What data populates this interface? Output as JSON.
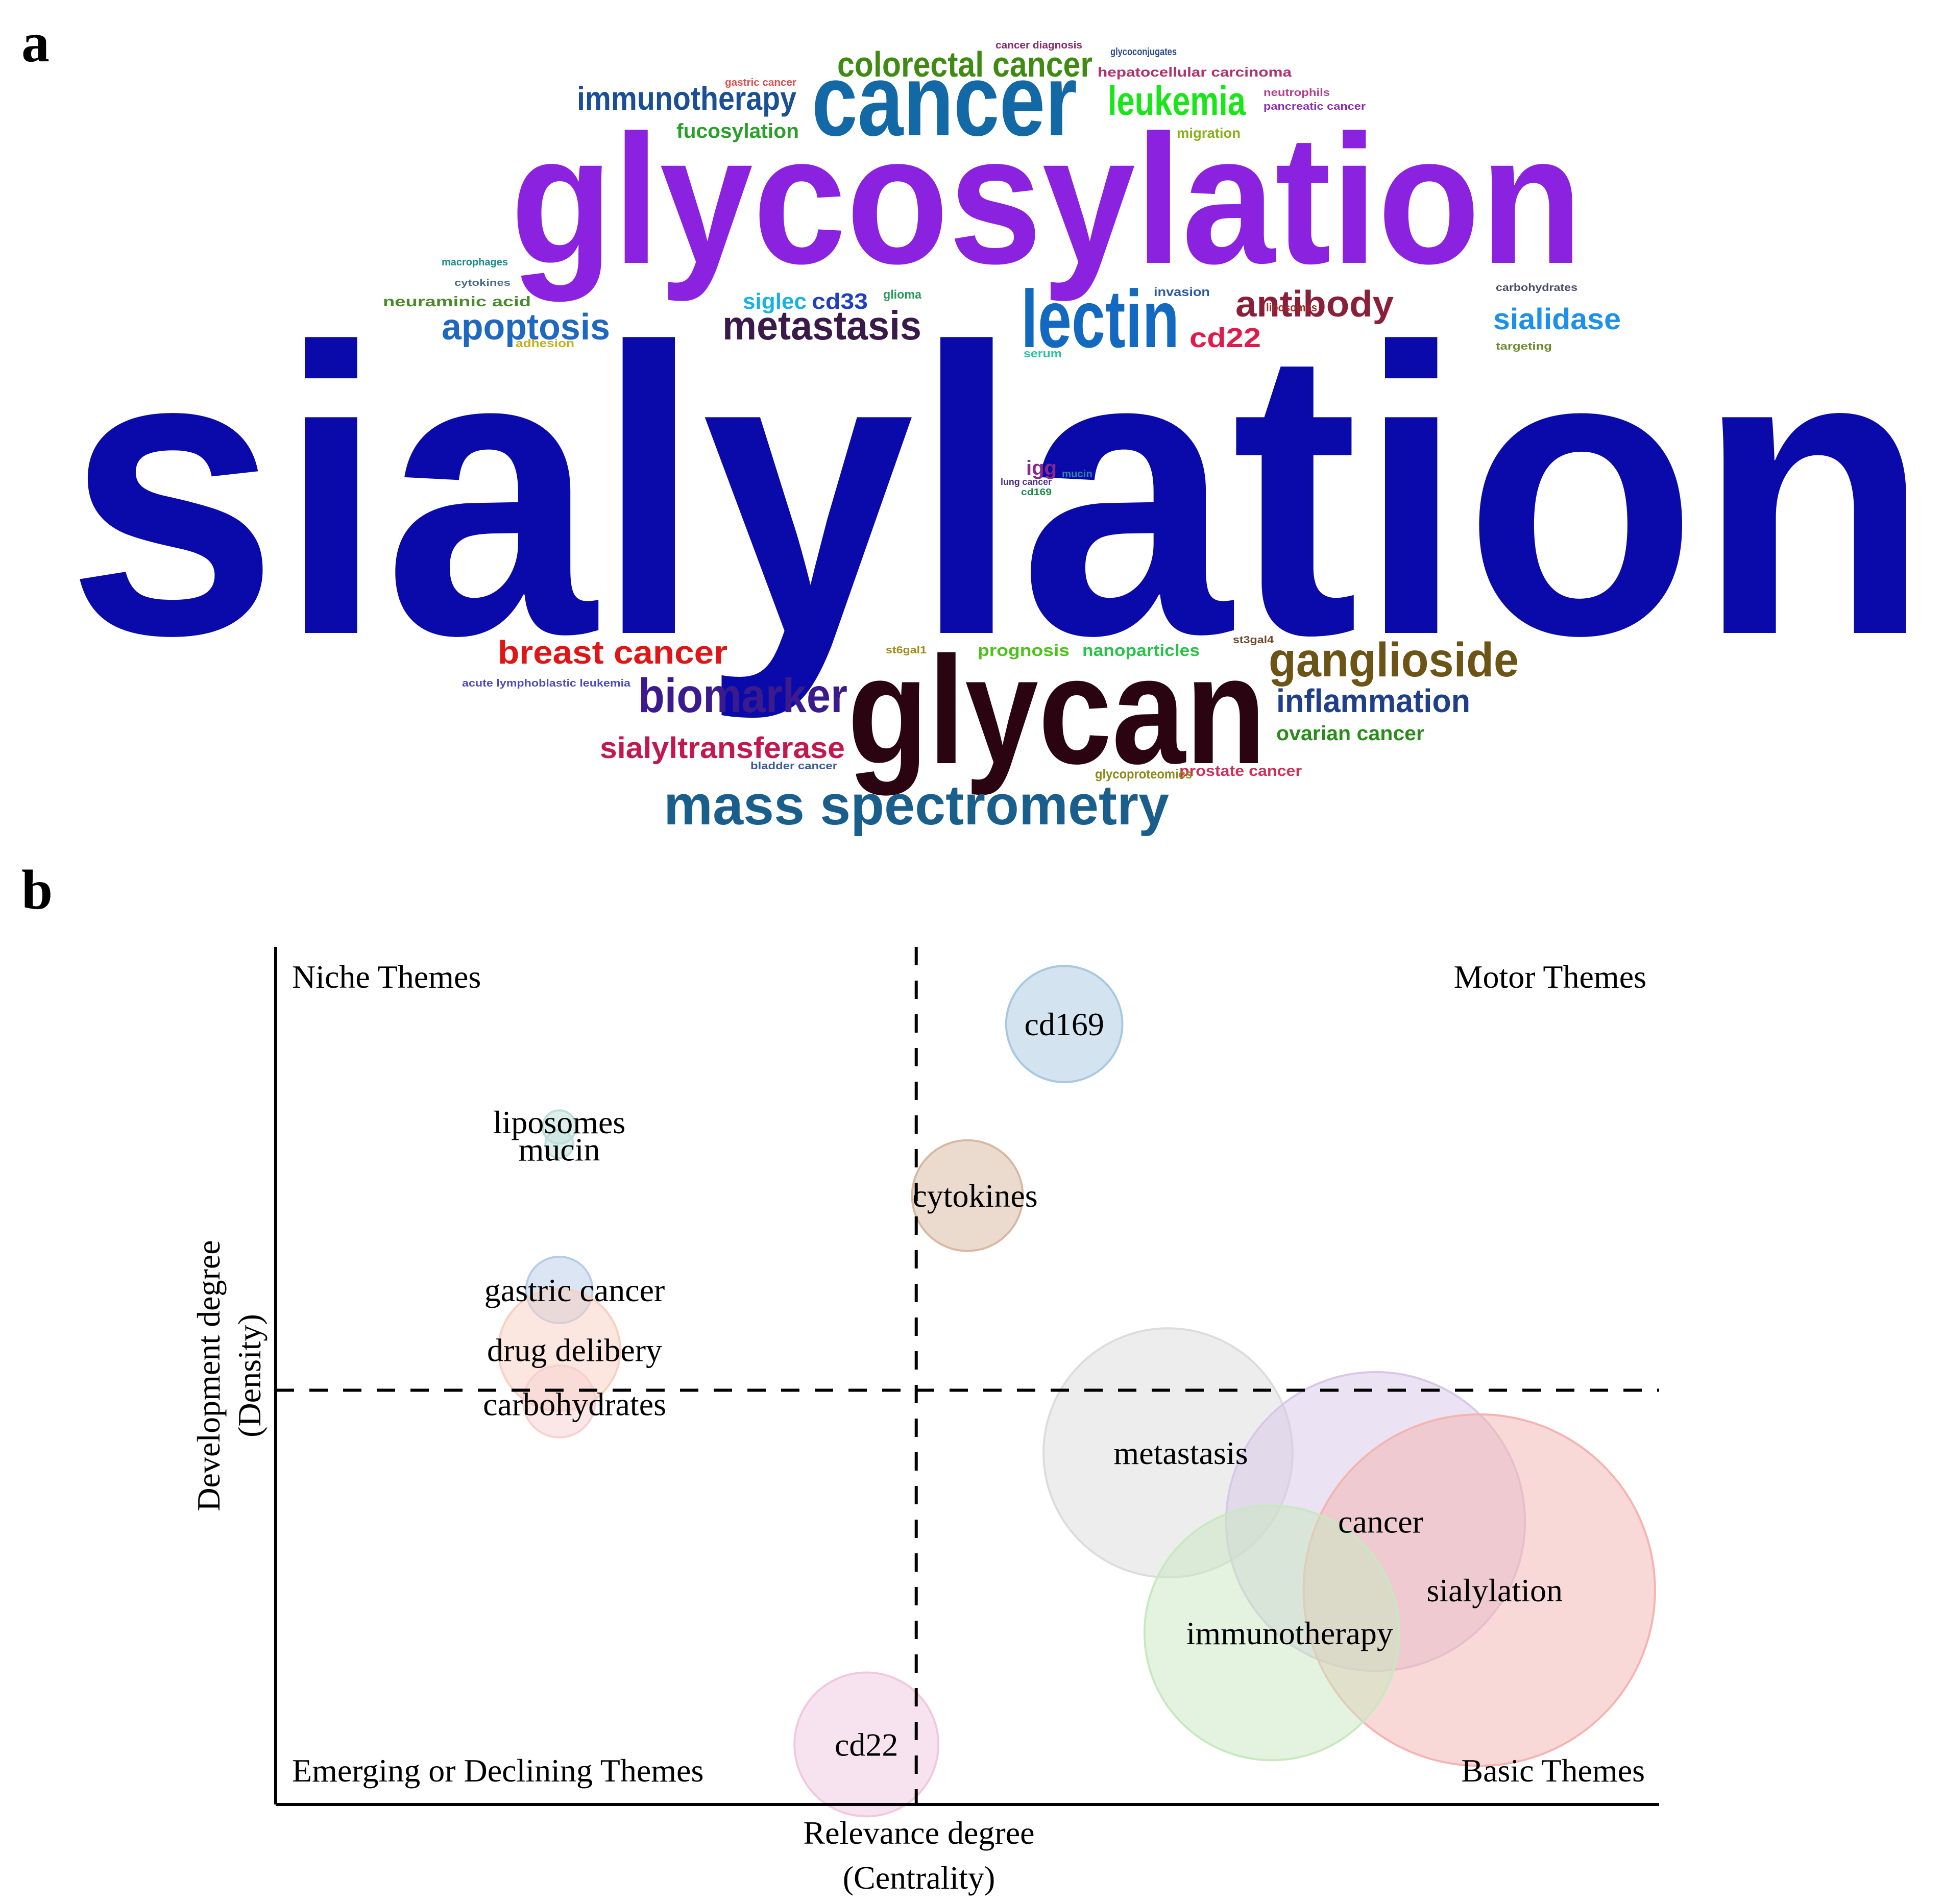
{
  "panel_a": {
    "label": "a",
    "words": [
      {
        "text": "sialylation",
        "color": "#0a0aaa"
      },
      {
        "text": "glycosylation",
        "color": "#8a22e0"
      },
      {
        "text": "glycan",
        "color": "#2a0410"
      },
      {
        "text": "cancer",
        "color": "#1368a6"
      },
      {
        "text": "lectin",
        "color": "#1368c0"
      },
      {
        "text": "mass spectrometry",
        "color": "#1a5f8c"
      },
      {
        "text": "ganglioside",
        "color": "#6b5416"
      },
      {
        "text": "biomarker",
        "color": "#3a1a8c"
      },
      {
        "text": "colorectal cancer",
        "color": "#3f8a12"
      },
      {
        "text": "immunotherapy",
        "color": "#1a4f95"
      },
      {
        "text": "leukemia",
        "color": "#19e619"
      },
      {
        "text": "metastasis",
        "color": "#3a1a48"
      },
      {
        "text": "antibody",
        "color": "#8a1f3a"
      },
      {
        "text": "apoptosis",
        "color": "#1f68c0"
      },
      {
        "text": "breast cancer",
        "color": "#e01515"
      },
      {
        "text": "inflammation",
        "color": "#1f3f8a"
      },
      {
        "text": "sialyltransferase",
        "color": "#c2184f"
      },
      {
        "text": "sialidase",
        "color": "#1e90ea"
      },
      {
        "text": "cd22",
        "color": "#e01a4a"
      },
      {
        "text": "cd33",
        "color": "#1f3fc0"
      },
      {
        "text": "siglec",
        "color": "#1ab0e6"
      },
      {
        "text": "fucosylation",
        "color": "#2aa02a"
      },
      {
        "text": "ovarian cancer",
        "color": "#2a8a1a"
      },
      {
        "text": "prostate cancer",
        "color": "#d0305a"
      },
      {
        "text": "prognosis",
        "color": "#4cc21a"
      },
      {
        "text": "nanoparticles",
        "color": "#2ac24c"
      },
      {
        "text": "glycoproteomics",
        "color": "#8a8a1a"
      },
      {
        "text": "igg",
        "color": "#8a2a8a"
      },
      {
        "text": "hepatocellular carcinoma",
        "color": "#b0306a"
      },
      {
        "text": "neuraminic acid",
        "color": "#4a8a2a"
      },
      {
        "text": "migration",
        "color": "#8ab01a"
      },
      {
        "text": "invasion",
        "color": "#2a5a9a"
      },
      {
        "text": "glioma",
        "color": "#2a9a5a"
      },
      {
        "text": "serum",
        "color": "#2ac2a0"
      },
      {
        "text": "adhesion",
        "color": "#c2b01a"
      },
      {
        "text": "carbohydrates",
        "color": "#4a4a6a"
      },
      {
        "text": "targeting",
        "color": "#6a8a2a"
      },
      {
        "text": "macrophages",
        "color": "#1a8a8a"
      },
      {
        "text": "cytokines",
        "color": "#4a6a8a"
      },
      {
        "text": "acute lymphoblastic leukemia",
        "color": "#4a4ac2"
      },
      {
        "text": "bladder cancer",
        "color": "#3a5a9a"
      },
      {
        "text": "st6gal1",
        "color": "#a08a1a"
      },
      {
        "text": "st3gal4",
        "color": "#6a4a2a"
      },
      {
        "text": "cancer diagnosis",
        "color": "#8a2a6a"
      },
      {
        "text": "glycoconjugates",
        "color": "#2a4a8a"
      },
      {
        "text": "pancreatic cancer",
        "color": "#8a2ab0"
      },
      {
        "text": "neutrophils",
        "color": "#b0408a"
      },
      {
        "text": "gastric cancer",
        "color": "#e04a4a"
      },
      {
        "text": "mucin",
        "color": "#2a8aa0"
      },
      {
        "text": "liposomes",
        "color": "#a02a2a"
      },
      {
        "text": "cd169",
        "color": "#1a8a4a"
      },
      {
        "text": "lung cancer",
        "color": "#4a2a8a"
      }
    ]
  },
  "panel_b": {
    "label": "b",
    "quadrants": {
      "top_left": "Niche Themes",
      "top_right": "Motor Themes",
      "bottom_left": "Emerging or Declining Themes",
      "bottom_right": "Basic Themes"
    },
    "xlabel_line1": "Relevance degree",
    "xlabel_line2": "(Centrality)",
    "ylabel_line1": "Development degree",
    "ylabel_line2": "(Density)"
  },
  "chart_data": {
    "type": "scatter",
    "title": "",
    "xlabel": "Relevance degree (Centrality)",
    "ylabel": "Development degree (Density)",
    "xlim": [
      0,
      1
    ],
    "ylim": [
      0,
      1
    ],
    "x_divider": 0.463,
    "y_divider": 0.483,
    "grid": false,
    "bubbles": [
      {
        "label": "cd169",
        "x": 0.57,
        "y": 0.91,
        "size": 0.042,
        "color": "#a8c8e0"
      },
      {
        "label": "liposomes",
        "x": 0.205,
        "y": 0.79,
        "size": 0.012,
        "color": "#bde0d8"
      },
      {
        "label": "mucin",
        "x": 0.205,
        "y": 0.77,
        "size": 0.01,
        "color": "#bde0d8"
      },
      {
        "label": "cytokines",
        "x": 0.5,
        "y": 0.71,
        "size": 0.04,
        "color": "#d8b8a0"
      },
      {
        "label": "gastric cancer",
        "x": 0.205,
        "y": 0.6,
        "size": 0.024,
        "color": "#b8cce8"
      },
      {
        "label": "drug delibery",
        "x": 0.205,
        "y": 0.53,
        "size": 0.044,
        "color": "#f8d0c0"
      },
      {
        "label": "carbohydrates",
        "x": 0.205,
        "y": 0.47,
        "size": 0.026,
        "color": "#f8d0d0"
      },
      {
        "label": "metastasis",
        "x": 0.645,
        "y": 0.41,
        "size": 0.09,
        "color": "#dcdcdc"
      },
      {
        "label": "cancer",
        "x": 0.795,
        "y": 0.33,
        "size": 0.108,
        "color": "#d8c8e8"
      },
      {
        "label": "sialylation",
        "x": 0.87,
        "y": 0.25,
        "size": 0.127,
        "color": "#f4b4b0"
      },
      {
        "label": "immunotherapy",
        "x": 0.72,
        "y": 0.2,
        "size": 0.092,
        "color": "#c8e8c0"
      },
      {
        "label": "cd22",
        "x": 0.427,
        "y": 0.07,
        "size": 0.052,
        "color": "#f0c8e0"
      }
    ],
    "legend": "none"
  }
}
